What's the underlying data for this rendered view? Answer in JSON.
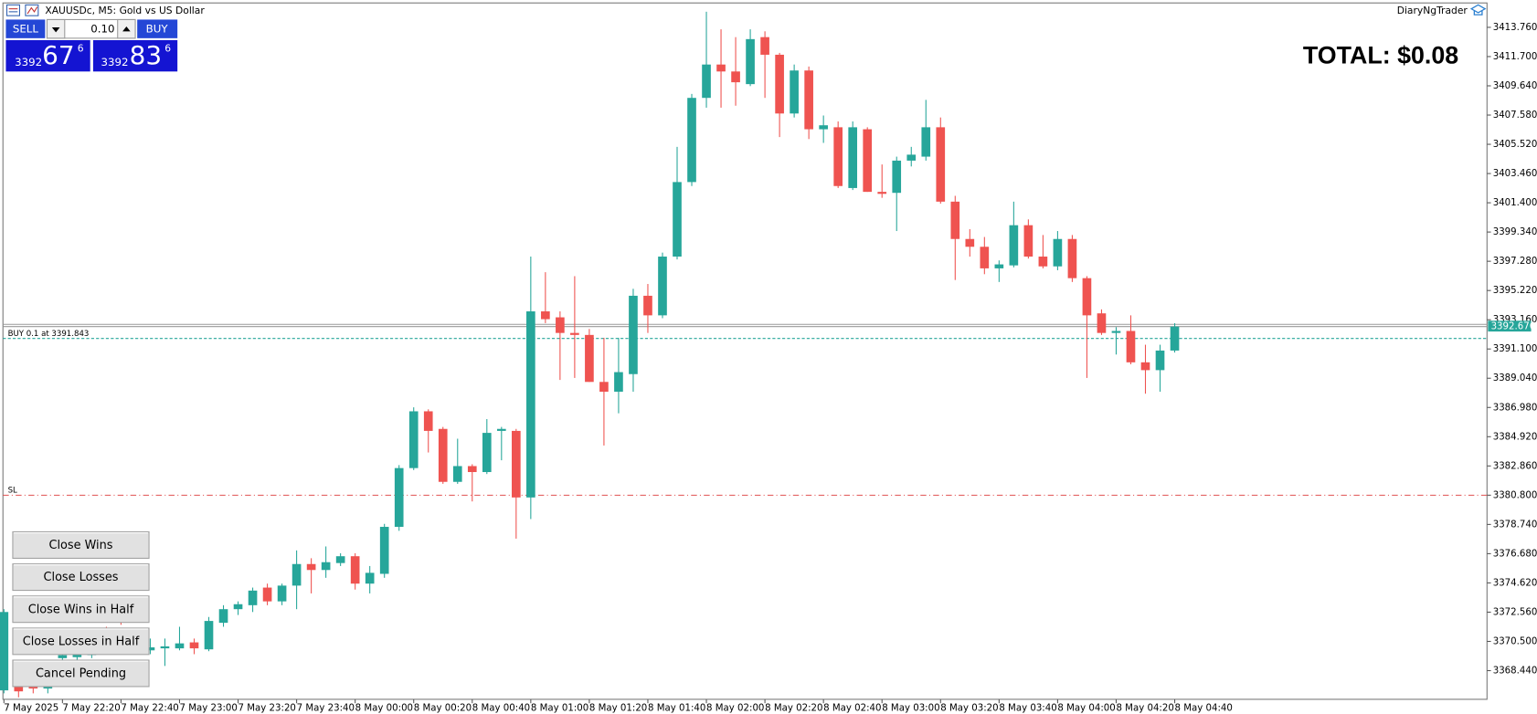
{
  "window_title": "XAUUSDc, M5:  Gold vs US Dollar",
  "account": "DiaryNgTrader",
  "total": "TOTAL: $0.08",
  "trade_panel": {
    "sell": "SELL",
    "buy": "BUY",
    "lot": "0.10",
    "sell_big": "3392",
    "sell_digits": "67",
    "sell_point": "6",
    "buy_big": "3392",
    "buy_digits": "83",
    "buy_point": "6"
  },
  "buttons": [
    "Close Wins",
    "Close Losses",
    "Close Wins in Half",
    "Close Losses in Half",
    "Cancel Pending"
  ],
  "chart_data": {
    "type": "candlestick",
    "up_color": "#26a69a",
    "down_color": "#ef5350",
    "categories": [
      "7 May 2025",
      null,
      null,
      null,
      "7 May 22:20",
      null,
      null,
      null,
      "7 May 22:40",
      null,
      null,
      null,
      "7 May 23:00",
      null,
      null,
      null,
      "7 May 23:20",
      null,
      null,
      null,
      "7 May 23:40",
      null,
      null,
      null,
      "8 May 00:00",
      null,
      null,
      null,
      "8 May 00:20",
      null,
      null,
      null,
      "8 May 00:40",
      null,
      null,
      null,
      "8 May 01:00",
      null,
      null,
      null,
      "8 May 01:20",
      null,
      null,
      null,
      "8 May 01:40",
      null,
      null,
      null,
      "8 May 02:00",
      null,
      null,
      null,
      "8 May 02:20",
      null,
      null,
      null,
      "8 May 02:40",
      null,
      null,
      null,
      "8 May 03:00",
      null,
      null,
      null,
      "8 May 03:20",
      null,
      null,
      null,
      "8 May 03:40",
      null,
      null,
      null,
      "8 May 04:00",
      null,
      null,
      null,
      "8 May 04:20",
      null,
      null,
      null,
      "8 May 04:40"
    ],
    "open": [
      3367.05,
      3367.39,
      3367.39,
      3367.18,
      3369.32,
      3369.39,
      3369.53,
      3370.98,
      3372.77,
      3369.81,
      3369.87,
      3370.01,
      3370.01,
      3370.43,
      3369.94,
      3371.81,
      3372.77,
      3373.05,
      3374.29,
      3373.32,
      3374.43,
      3375.95,
      3375.53,
      3376.02,
      3376.5,
      3374.57,
      3375.26,
      3378.57,
      3382.71,
      3386.71,
      3385.47,
      3381.74,
      3382.85,
      3382.43,
      3385.33,
      3385.33,
      3380.64,
      3393.75,
      3393.33,
      3392.23,
      3392.09,
      3388.78,
      3388.09,
      3389.33,
      3394.85,
      3393.47,
      3397.61,
      3402.86,
      3408.79,
      3411.14,
      3410.65,
      3409.76,
      3413.07,
      3411.83,
      3407.69,
      3410.72,
      3406.58,
      3406.72,
      3402.44,
      3406.58,
      3402.17,
      3402.1,
      3404.37,
      3404.65,
      3406.72,
      3401.48,
      3398.85,
      3398.3,
      3396.78,
      3396.99,
      3399.82,
      3397.61,
      3396.92,
      3398.85,
      3396.09,
      3393.61,
      3392.23,
      3392.37,
      3390.16,
      3389.61,
      3390.99
    ],
    "high": [
      3372.77,
      3367.74,
      3368.08,
      3367.8,
      3369.81,
      3369.87,
      3370.29,
      3371.53,
      3373.46,
      3370.5,
      3370.7,
      3370.7,
      3371.53,
      3370.7,
      3372.22,
      3373.05,
      3373.32,
      3374.29,
      3374.57,
      3374.57,
      3376.91,
      3376.36,
      3377.19,
      3376.71,
      3376.71,
      3375.81,
      3378.78,
      3382.92,
      3386.99,
      3386.85,
      3385.61,
      3384.78,
      3382.98,
      3386.16,
      3385.61,
      3385.47,
      3397.61,
      3396.51,
      3393.75,
      3396.23,
      3392.51,
      3391.89,
      3391.89,
      3395.34,
      3395.68,
      3397.89,
      3405.34,
      3409.07,
      3414.86,
      3413.62,
      3413.07,
      3413.62,
      3413.48,
      3411.96,
      3411.14,
      3411.0,
      3407.55,
      3407.13,
      3407.13,
      3406.72,
      3404.1,
      3404.65,
      3405.34,
      3408.65,
      3407.41,
      3401.89,
      3399.54,
      3398.99,
      3397.34,
      3401.48,
      3400.23,
      3399.13,
      3399.41,
      3399.13,
      3396.23,
      3393.89,
      3392.64,
      3393.47,
      3391.4,
      3391.4,
      3392.92
    ],
    "low": [
      3366.84,
      3366.56,
      3366.84,
      3366.84,
      3369.05,
      3369.12,
      3369.32,
      3370.01,
      3371.67,
      3369.6,
      3369.6,
      3368.77,
      3369.87,
      3369.6,
      3369.81,
      3371.53,
      3372.36,
      3372.57,
      3373.05,
      3373.05,
      3372.77,
      3373.88,
      3374.98,
      3375.81,
      3374.15,
      3373.88,
      3374.98,
      3378.29,
      3382.57,
      3383.81,
      3381.6,
      3381.6,
      3380.36,
      3382.29,
      3383.26,
      3377.74,
      3379.12,
      3392.92,
      3388.92,
      3389.06,
      3388.78,
      3384.3,
      3386.57,
      3388.09,
      3392.23,
      3393.27,
      3397.41,
      3402.58,
      3408.1,
      3408.1,
      3408.24,
      3409.62,
      3408.79,
      3406.03,
      3407.41,
      3405.89,
      3405.62,
      3402.44,
      3402.3,
      3402.17,
      3401.75,
      3399.41,
      3403.96,
      3404.37,
      3401.34,
      3395.96,
      3397.61,
      3396.37,
      3395.82,
      3396.85,
      3397.47,
      3396.78,
      3396.65,
      3395.82,
      3389.06,
      3392.09,
      3390.71,
      3390.02,
      3387.95,
      3388.09,
      3390.85
    ],
    "close": [
      3372.57,
      3366.98,
      3367.18,
      3367.46,
      3369.53,
      3369.6,
      3369.87,
      3370.36,
      3372.22,
      3370.15,
      3370.08,
      3370.15,
      3370.36,
      3370.01,
      3371.94,
      3372.77,
      3373.12,
      3374.08,
      3373.32,
      3374.43,
      3375.95,
      3375.53,
      3376.08,
      3376.5,
      3374.57,
      3375.33,
      3378.57,
      3382.71,
      3386.71,
      3385.33,
      3381.74,
      3382.85,
      3382.43,
      3385.19,
      3385.47,
      3380.64,
      3393.75,
      3393.2,
      3392.23,
      3392.09,
      3388.78,
      3388.09,
      3389.47,
      3394.85,
      3393.47,
      3397.61,
      3402.86,
      3408.79,
      3411.14,
      3410.65,
      3409.89,
      3412.93,
      3411.83,
      3407.69,
      3410.72,
      3406.58,
      3406.86,
      3402.58,
      3406.72,
      3402.17,
      3402.03,
      3404.37,
      3404.79,
      3406.72,
      3401.48,
      3398.85,
      3398.3,
      3396.78,
      3397.06,
      3399.82,
      3397.61,
      3396.92,
      3398.85,
      3396.09,
      3393.47,
      3392.23,
      3392.37,
      3390.16,
      3389.61,
      3390.99,
      3392.68
    ],
    "ylim": [
      3366.42,
      3415.41
    ],
    "yticks": [
      {
        "value": 3413.76,
        "label": "3413.760"
      },
      {
        "value": 3411.7,
        "label": "3411.700"
      },
      {
        "value": 3409.64,
        "label": "3409.640"
      },
      {
        "value": 3407.58,
        "label": "3407.580"
      },
      {
        "value": 3405.52,
        "label": "3405.520"
      },
      {
        "value": 3403.46,
        "label": "3403.460"
      },
      {
        "value": 3401.4,
        "label": "3401.400"
      },
      {
        "value": 3399.34,
        "label": "3399.340"
      },
      {
        "value": 3397.28,
        "label": "3397.280"
      },
      {
        "value": 3395.22,
        "label": "3395.220"
      },
      {
        "value": 3393.16,
        "label": "3393.160"
      },
      {
        "value": 3391.1,
        "label": "3391.100"
      },
      {
        "value": 3389.04,
        "label": "3389.040"
      },
      {
        "value": 3386.98,
        "label": "3386.980"
      },
      {
        "value": 3384.92,
        "label": "3384.920"
      },
      {
        "value": 3382.86,
        "label": "3382.860"
      },
      {
        "value": 3380.8,
        "label": "3380.800"
      },
      {
        "value": 3378.74,
        "label": "3378.740"
      },
      {
        "value": 3376.68,
        "label": "3376.680"
      },
      {
        "value": 3374.62,
        "label": "3374.620"
      },
      {
        "value": 3372.56,
        "label": "3372.560"
      },
      {
        "value": 3370.5,
        "label": "3370.500"
      },
      {
        "value": 3368.44,
        "label": "3368.440"
      }
    ],
    "bid": 3392.676,
    "ask": 3392.836,
    "order_label": "BUY 0.1 at 3391.843",
    "order_price": 3391.843,
    "sl_label": "SL",
    "sl_price": 3380.8
  }
}
